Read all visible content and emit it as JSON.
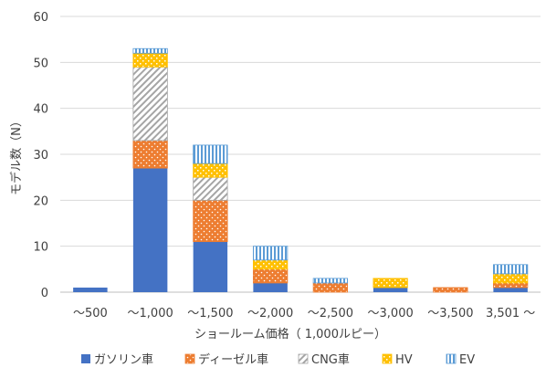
{
  "chart_data": {
    "type": "bar",
    "stacked": true,
    "categories": [
      "～500",
      "～1,000",
      "～1,500",
      "～2,000",
      "～2,500",
      "～3,000",
      "～3,500",
      "3,501 ～"
    ],
    "series": [
      {
        "name": "ガソリン車",
        "color": "#4472C4",
        "pattern": "solid",
        "values": [
          1,
          27,
          11,
          2,
          0,
          1,
          0,
          1
        ]
      },
      {
        "name": "ディーゼル車",
        "color": "#ED7D31",
        "pattern": "dots",
        "values": [
          0,
          6,
          9,
          3,
          2,
          0,
          1,
          1
        ]
      },
      {
        "name": "CNG車",
        "color": "#A5A5A5",
        "pattern": "diagonal",
        "values": [
          0,
          16,
          5,
          0,
          0,
          0,
          0,
          0
        ]
      },
      {
        "name": "HV",
        "color": "#FFC000",
        "pattern": "checker",
        "values": [
          0,
          3,
          3,
          2,
          0,
          2,
          0,
          2
        ]
      },
      {
        "name": "EV",
        "color": "#5B9BD5",
        "pattern": "vertical",
        "values": [
          0,
          1,
          4,
          3,
          1,
          0,
          0,
          2
        ]
      }
    ],
    "xlabel": "ショールーム価格（ 1,000ルピー）",
    "ylabel": "モデル数（N）",
    "ylim": [
      0,
      60
    ],
    "yticks": [
      0,
      10,
      20,
      30,
      40,
      50,
      60
    ],
    "grid": true,
    "legend_position": "bottom"
  }
}
